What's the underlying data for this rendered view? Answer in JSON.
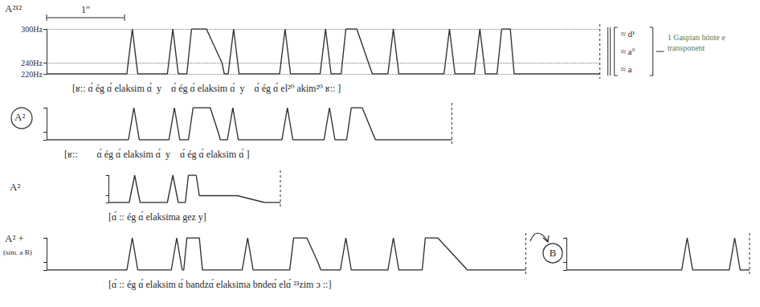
{
  "chart_data": [
    {
      "type": "line",
      "title": "A²¹²",
      "color": "#333333",
      "x": [
        0,
        1.03,
        1.1,
        1.17,
        1.55,
        1.62,
        1.69,
        1.8,
        1.86,
        2.05,
        2.25,
        2.28,
        2.33,
        2.4,
        2.47,
        2.99,
        3.06,
        3.13,
        3.51,
        3.58,
        3.65,
        3.78,
        3.84,
        3.98,
        4.18,
        4.38,
        4.45,
        4.52,
        5.1,
        5.17,
        5.24,
        5.49,
        5.56,
        5.63,
        5.78,
        5.84,
        5.95,
        6.0,
        7.1
      ],
      "values": [
        220,
        220,
        300,
        220,
        220,
        300,
        220,
        220,
        300,
        300,
        240,
        220,
        220,
        300,
        220,
        220,
        300,
        220,
        220,
        300,
        220,
        220,
        300,
        300,
        220,
        220,
        300,
        220,
        220,
        300,
        220,
        220,
        300,
        220,
        220,
        300,
        300,
        220,
        220
      ],
      "xlim": [
        0,
        7.1
      ],
      "ylim": [
        220,
        300
      ],
      "yticks": [
        {
          "value": 220,
          "label": "220Hz"
        },
        {
          "value": 240,
          "label": "240Hz"
        },
        {
          "value": 300,
          "label": "300Hz"
        }
      ],
      "grid": true,
      "tick_labels": "y",
      "xlabel": "[ʁ:: ɑ́ ég ɑ́ elaksim ɑ́  y    ɑ́ ég ɑ́ elaksim ɑ́  y    ɑ́ ég ɑ́ el²⁰ akim²⁰ ʁ:: ]",
      "scale_bar": {
        "value": 1,
        "label": "1\""
      },
      "annotations": [
        "≈ d¹",
        "≈ a°",
        "≈ a",
        "1 Gaspian hónte e transponent"
      ]
    },
    {
      "type": "line",
      "title": "A²",
      "color": "#333333",
      "x": [
        0,
        1.05,
        1.12,
        1.19,
        1.57,
        1.64,
        1.71,
        1.82,
        1.88,
        2.1,
        2.2,
        2.23,
        2.32,
        2.39,
        2.46,
        3.02,
        3.09,
        3.16,
        3.56,
        3.63,
        3.7,
        3.85,
        3.91,
        4.05,
        4.22,
        5.2
      ],
      "values": [
        220,
        220,
        300,
        220,
        220,
        300,
        220,
        220,
        300,
        300,
        240,
        220,
        220,
        300,
        220,
        220,
        300,
        220,
        220,
        300,
        220,
        220,
        300,
        300,
        220,
        220
      ],
      "xlim": [
        0,
        5.2
      ],
      "ylim": [
        220,
        300
      ],
      "yticks": [
        220,
        240,
        300
      ],
      "grid": false,
      "tick_labels": false,
      "xlabel": "[ʁ::        ɑ́ ég ɑ́ elaksim ɑ́  y    ɑ́ ég ɑ́ elaksim ɑ́ ]"
    },
    {
      "type": "line",
      "title": "A²",
      "color": "#333333",
      "x": [
        0.8,
        1.06,
        1.13,
        1.2,
        1.55,
        1.62,
        1.69,
        1.78,
        1.82,
        1.92,
        1.96,
        2.45,
        2.8,
        3.0
      ],
      "values": [
        220,
        220,
        300,
        220,
        220,
        300,
        220,
        220,
        300,
        300,
        240,
        240,
        220,
        220
      ],
      "xlim": [
        0.8,
        3.0
      ],
      "ylim": [
        220,
        300
      ],
      "yticks": [
        220,
        240,
        300
      ],
      "grid": false,
      "tick_labels": false,
      "xlabel": "[ɑ́ :: ég ɑ́ elaksima gez y]"
    },
    {
      "type": "line",
      "title": "A² +",
      "subtitle": "(sim. a B)",
      "color": "#333333",
      "x": [
        0,
        1.03,
        1.1,
        1.17,
        1.6,
        1.67,
        1.74,
        1.76,
        1.8,
        1.96,
        2.0,
        2.51,
        2.58,
        2.65,
        3.12,
        3.17,
        3.34,
        3.48,
        3.52,
        3.77,
        3.84,
        3.91,
        4.38,
        4.45,
        4.52,
        4.82,
        4.86,
        5.02,
        5.4,
        6.15
      ],
      "values": [
        220,
        220,
        300,
        220,
        220,
        300,
        220,
        220,
        300,
        300,
        220,
        220,
        300,
        220,
        220,
        300,
        300,
        240,
        220,
        220,
        300,
        220,
        220,
        300,
        220,
        220,
        300,
        300,
        220,
        220
      ],
      "xlim": [
        0,
        6.15
      ],
      "ylim": [
        220,
        300
      ],
      "yticks": [
        220,
        240,
        300
      ],
      "grid": false,
      "tick_labels": false,
      "xlabel": "[ɑ́ :: ég ɑ́ elaksim ɑ́ bandzɑ́ elaksima bndeɑ́ elɑ́ ²³zim ɔ ::]"
    },
    {
      "type": "line",
      "title": "B",
      "color": "#333333",
      "x": [
        0,
        1.48,
        1.55,
        1.62,
        2.09,
        2.16,
        2.23,
        2.35
      ],
      "values": [
        220,
        220,
        300,
        220,
        220,
        300,
        220,
        220
      ],
      "xlim": [
        0,
        2.35
      ],
      "ylim": [
        220,
        300
      ],
      "yticks": [
        220,
        240,
        300
      ],
      "grid": false,
      "tick_labels": false
    }
  ]
}
